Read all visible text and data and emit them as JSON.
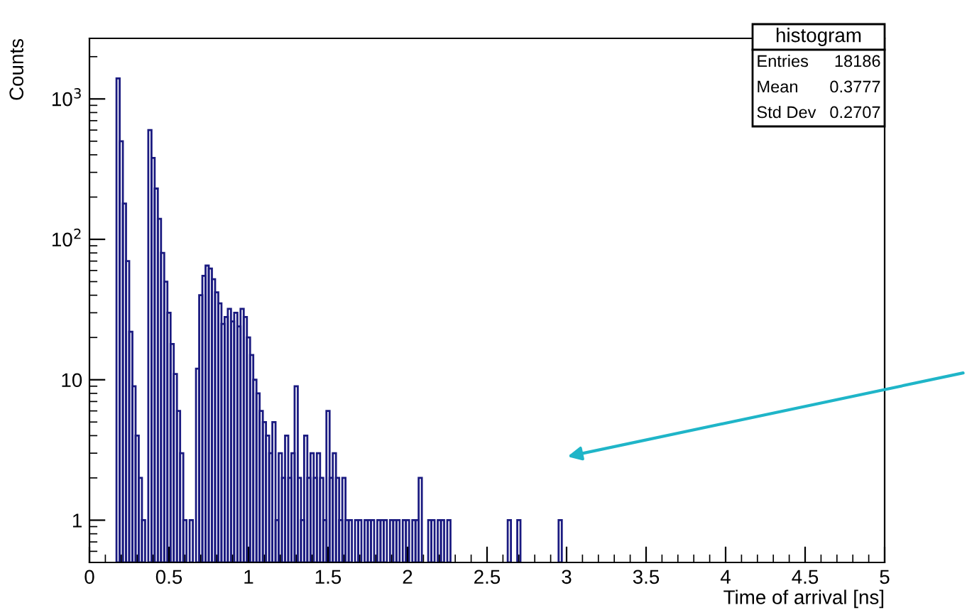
{
  "chart_data": {
    "type": "histogram",
    "xlabel": "Time of arrival [ns]",
    "ylabel": "Counts",
    "bins": [
      0.17,
      0.19,
      0.21,
      0.23,
      0.25,
      0.27,
      0.29,
      0.31,
      0.33,
      0.35,
      0.37,
      0.39,
      0.41,
      0.43,
      0.45,
      0.47,
      0.49,
      0.51,
      0.53,
      0.55,
      0.57,
      0.59,
      0.61,
      0.63,
      0.65,
      0.67,
      0.69,
      0.71,
      0.73,
      0.75,
      0.77,
      0.79,
      0.81,
      0.83,
      0.85,
      0.87,
      0.89,
      0.91,
      0.93,
      0.95,
      0.97,
      0.99,
      1.01,
      1.03,
      1.05,
      1.07,
      1.09,
      1.11,
      1.13,
      1.15,
      1.17,
      1.19,
      1.21,
      1.23,
      1.25,
      1.27,
      1.29,
      1.31,
      1.33,
      1.35,
      1.37,
      1.39,
      1.41,
      1.43,
      1.45,
      1.47,
      1.49,
      1.51,
      1.53,
      1.55,
      1.57,
      1.59,
      1.61,
      1.63,
      1.65,
      1.67,
      1.69,
      1.71,
      1.73,
      1.75,
      1.77,
      1.79,
      1.81,
      1.83,
      1.85,
      1.87,
      1.89,
      1.91,
      1.93,
      1.95,
      1.97,
      1.99,
      2.01,
      2.03,
      2.05,
      2.07,
      2.09,
      2.11,
      2.13,
      2.15,
      2.17,
      2.19,
      2.21,
      2.23,
      2.25,
      2.27,
      2.29,
      2.31,
      2.33,
      2.35,
      2.37,
      2.39,
      2.41,
      2.43,
      2.45,
      2.47,
      2.49,
      2.51,
      2.53,
      2.55,
      2.57,
      2.59,
      2.61,
      2.63,
      2.65,
      2.67,
      2.69,
      2.71,
      2.73,
      2.75,
      2.77,
      2.79,
      2.81,
      2.83,
      2.85,
      2.87,
      2.89,
      2.91,
      2.93,
      2.95,
      2.97
    ],
    "values": [
      1400,
      500,
      180,
      70,
      22,
      9,
      4,
      2,
      1,
      null,
      600,
      380,
      230,
      140,
      80,
      50,
      30,
      18,
      11,
      6,
      3,
      1,
      null,
      1,
      null,
      12,
      40,
      55,
      65,
      62,
      52,
      42,
      35,
      25,
      28,
      32,
      26,
      30,
      24,
      32,
      28,
      20,
      15,
      10,
      8,
      6,
      5,
      4,
      3,
      5,
      1,
      3,
      2,
      4,
      2,
      3,
      9,
      2,
      1,
      4,
      2,
      3,
      2,
      3,
      2,
      1,
      6,
      2,
      3,
      2,
      1,
      2,
      1,
      1,
      null,
      1,
      1,
      null,
      1,
      1,
      1,
      null,
      1,
      1,
      1,
      null,
      1,
      1,
      1,
      null,
      1,
      1,
      null,
      1,
      1,
      2,
      null,
      null,
      1,
      1,
      null,
      1,
      1,
      null,
      1,
      null,
      null,
      null,
      null,
      null,
      null,
      null,
      null,
      null,
      null,
      null,
      null,
      null,
      null,
      null,
      null,
      null,
      null,
      1,
      null,
      null,
      1,
      null,
      null,
      null,
      null,
      null,
      null,
      null,
      null,
      null,
      null,
      null,
      null,
      1
    ],
    "color": "#1a1a80",
    "log": "y",
    "xlim": [
      0,
      5
    ],
    "xticks": [
      0,
      0.5,
      1,
      1.5,
      2,
      2.5,
      3,
      3.5,
      4,
      4.5,
      5
    ],
    "ylim": [
      0.5,
      2700
    ],
    "yticks": [
      1,
      10,
      {
        "value": 100,
        "label": "10$^{2}$"
      },
      {
        "value": 1000,
        "label": "10$^{3}$"
      }
    ],
    "grid": false,
    "legend": false,
    "annotations": [
      "histogram",
      "Entries",
      "18186",
      "Mean",
      "0.3777",
      "Std Dev",
      "0.2707"
    ]
  }
}
